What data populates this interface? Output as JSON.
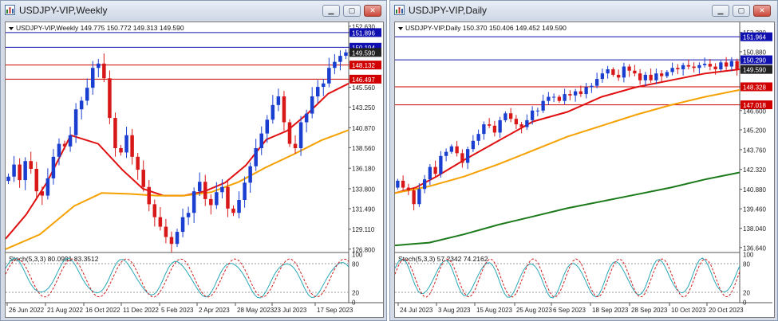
{
  "windows": [
    {
      "title": "USDJPY-VIP,Weekly",
      "header": "USDJPY-VIP,Weekly  149.775 150.772 149.313 149.590",
      "stoch_label": "Stoch(5,3,3) 80.0991 83.3512",
      "price_ticks": [
        "152.630",
        "151.896",
        "150.194",
        "149.590",
        "148.132",
        "146.497",
        "145.560",
        "143.250",
        "140.870",
        "138.560",
        "136.180",
        "133.800",
        "131.490",
        "129.110",
        "126.800"
      ],
      "stoch_ticks": [
        "100",
        "80",
        "20",
        "0"
      ],
      "date_ticks": [
        "26 Jun 2022",
        "21 Aug 2022",
        "16 Oct 2022",
        "11 Dec 2022",
        "5 Feb 2023",
        "2 Apr 2023",
        "28 May 2023",
        "23 Jul 2023",
        "17 Sep 2023"
      ],
      "colors": {
        "ma1": "#e01010",
        "ma2": "#f5a100",
        "hline_blue": "#1010b0",
        "hline_red": "#d00000"
      }
    },
    {
      "title": "USDJPY-VIP,Daily",
      "header": "USDJPY-VIP,Daily  150.370 150.406 149.452 149.590",
      "stoch_label": "Stoch(5,3,3) 57.2342 74.2162",
      "price_ticks": [
        "152.280",
        "151.964",
        "150.880",
        "150.290",
        "149.590",
        "148.328",
        "147.018",
        "146.600",
        "145.200",
        "143.760",
        "142.320",
        "140.880",
        "139.460",
        "138.040",
        "136.640"
      ],
      "stoch_ticks": [
        "100",
        "80",
        "20",
        "0"
      ],
      "date_ticks": [
        "24 Jul 2023",
        "3 Aug 2023",
        "15 Aug 2023",
        "25 Aug 2023",
        "6 Sep 2023",
        "18 Sep 2023",
        "28 Sep 2023",
        "10 Oct 2023",
        "20 Oct 2023"
      ],
      "colors": {
        "ma1": "#e01010",
        "ma2": "#f5a100",
        "ma3": "#1a7a1a"
      }
    }
  ],
  "icons": {
    "app": "chart-window-icon",
    "minimize": "minimize-icon",
    "maximize": "maximize-icon",
    "close": "close-icon"
  }
}
